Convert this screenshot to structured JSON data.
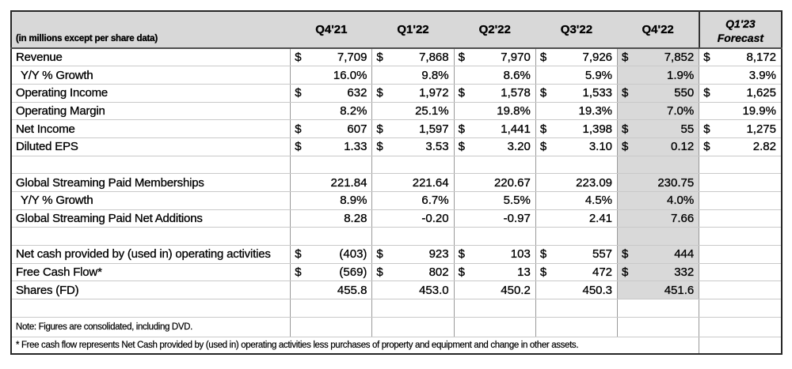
{
  "colors": {
    "header_bg": "#d8d8d8",
    "highlight_column_bg": "#d9d9d9",
    "grid_vertical": "#999999",
    "grid_horizontal": "#c9c9c9",
    "outer_border": "#262626",
    "text": "#000000"
  },
  "table": {
    "corner_label": "(in millions except per share data)",
    "columns": [
      "Q4'21",
      "Q1'22",
      "Q2'22",
      "Q3'22",
      "Q4'22"
    ],
    "forecast": {
      "line1": "Q1'23",
      "line2": "Forecast"
    },
    "highlight_column_index": 4,
    "rows": [
      {
        "label": "Revenue",
        "cells": [
          [
            "$",
            "7,709"
          ],
          [
            "$",
            "7,868"
          ],
          [
            "$",
            "7,970"
          ],
          [
            "$",
            "7,926"
          ],
          [
            "$",
            "7,852"
          ],
          [
            "$",
            "8,172"
          ]
        ]
      },
      {
        "label": "Y/Y % Growth",
        "indent": true,
        "cells": [
          [
            null,
            "16.0%"
          ],
          [
            null,
            "9.8%"
          ],
          [
            null,
            "8.6%"
          ],
          [
            null,
            "5.9%"
          ],
          [
            null,
            "1.9%"
          ],
          [
            null,
            "3.9%"
          ]
        ]
      },
      {
        "label": "Operating Income",
        "cells": [
          [
            "$",
            "632"
          ],
          [
            "$",
            "1,972"
          ],
          [
            "$",
            "1,578"
          ],
          [
            "$",
            "1,533"
          ],
          [
            "$",
            "550"
          ],
          [
            "$",
            "1,625"
          ]
        ]
      },
      {
        "label": "Operating Margin",
        "cells": [
          [
            null,
            "8.2%"
          ],
          [
            null,
            "25.1%"
          ],
          [
            null,
            "19.8%"
          ],
          [
            null,
            "19.3%"
          ],
          [
            null,
            "7.0%"
          ],
          [
            null,
            "19.9%"
          ]
        ]
      },
      {
        "label": "Net Income",
        "cells": [
          [
            "$",
            "607"
          ],
          [
            "$",
            "1,597"
          ],
          [
            "$",
            "1,441"
          ],
          [
            "$",
            "1,398"
          ],
          [
            "$",
            "55"
          ],
          [
            "$",
            "1,275"
          ]
        ]
      },
      {
        "label": "Diluted EPS",
        "cells": [
          [
            "$",
            "1.33"
          ],
          [
            "$",
            "3.53"
          ],
          [
            "$",
            "3.20"
          ],
          [
            "$",
            "3.10"
          ],
          [
            "$",
            "0.12"
          ],
          [
            "$",
            "2.82"
          ]
        ]
      },
      {
        "blank": true
      },
      {
        "label": "Global Streaming Paid Memberships",
        "cells": [
          [
            null,
            "221.84"
          ],
          [
            null,
            "221.64"
          ],
          [
            null,
            "220.67"
          ],
          [
            null,
            "223.09"
          ],
          [
            null,
            "230.75"
          ],
          null
        ]
      },
      {
        "label": "Y/Y % Growth",
        "indent": true,
        "cells": [
          [
            null,
            "8.9%"
          ],
          [
            null,
            "6.7%"
          ],
          [
            null,
            "5.5%"
          ],
          [
            null,
            "4.5%"
          ],
          [
            null,
            "4.0%"
          ],
          null
        ]
      },
      {
        "label": "Global Streaming Paid Net Additions",
        "cells": [
          [
            null,
            "8.28"
          ],
          [
            null,
            "-0.20"
          ],
          [
            null,
            "-0.97"
          ],
          [
            null,
            "2.41"
          ],
          [
            null,
            "7.66"
          ],
          null
        ]
      },
      {
        "blank": true
      },
      {
        "label": "Net cash provided by (used in) operating activities",
        "cells": [
          [
            "$",
            "(403)"
          ],
          [
            "$",
            "923"
          ],
          [
            "$",
            "103"
          ],
          [
            "$",
            "557"
          ],
          [
            "$",
            "444"
          ],
          null
        ]
      },
      {
        "label": "Free Cash Flow*",
        "cells": [
          [
            "$",
            "(569)"
          ],
          [
            "$",
            "802"
          ],
          [
            "$",
            "13"
          ],
          [
            "$",
            "472"
          ],
          [
            "$",
            "332"
          ],
          null
        ]
      },
      {
        "label": "Shares (FD)",
        "cells": [
          [
            null,
            "455.8"
          ],
          [
            null,
            "453.0"
          ],
          [
            null,
            "450.2"
          ],
          [
            null,
            "450.3"
          ],
          [
            null,
            "451.6"
          ],
          null
        ]
      },
      {
        "blank": true,
        "no_highlight": true
      },
      {
        "note": "Note: Figures are consolidated, including DVD."
      },
      {
        "footnote": "* Free cash flow represents Net Cash provided by (used in) operating activities less purchases of property and equipment and change in other assets."
      }
    ]
  }
}
